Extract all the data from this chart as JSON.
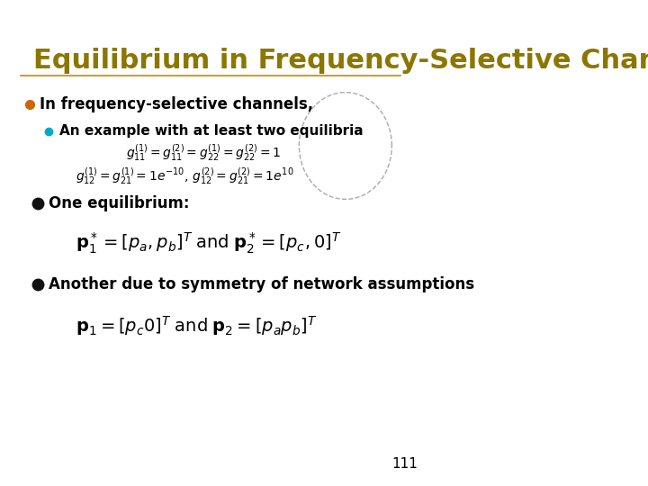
{
  "title": "Equilibrium in Frequency-Selective Channels",
  "title_color": "#8B7700",
  "title_fontsize": 22,
  "background_color": "#FFFFFF",
  "border_color": "#CC6600",
  "border_linewidth": 3,
  "slide_number": "111",
  "bullet1": "In frequency-selective channels,",
  "bullet1_color": "#000000",
  "subbullet1": "An example with at least two equilibria",
  "eq1": "$g_{11}^{(1)} = g_{11}^{(2)} = g_{22}^{(1)} = g_{22}^{(2)} = 1$",
  "eq2": "$g_{12}^{(1)} = g_{21}^{(1)} = 1e^{-10},\\, g_{12}^{(2)} = g_{21}^{(2)} = 1e^{10}$",
  "bullet2": "One equilibrium:",
  "eq3": "$\\mathbf{p}_1^* = [p_a, p_b]^T \\;\\mathrm{and}\\; \\mathbf{p}_2^* = [p_c, 0]^T$",
  "bullet3": "Another due to symmetry of network assumptions",
  "eq4": "$\\mathbf{p}_1 = [p_c 0]^T \\;\\mathrm{and}\\; \\mathbf{p}_2 = [p_a p_b]^T$",
  "orange_bullet_color": "#CC6600",
  "cyan_bullet_color": "#00AACC",
  "black_bullet_color": "#111111",
  "line_color": "#CC8800",
  "title_underline_color": "#CC8800"
}
